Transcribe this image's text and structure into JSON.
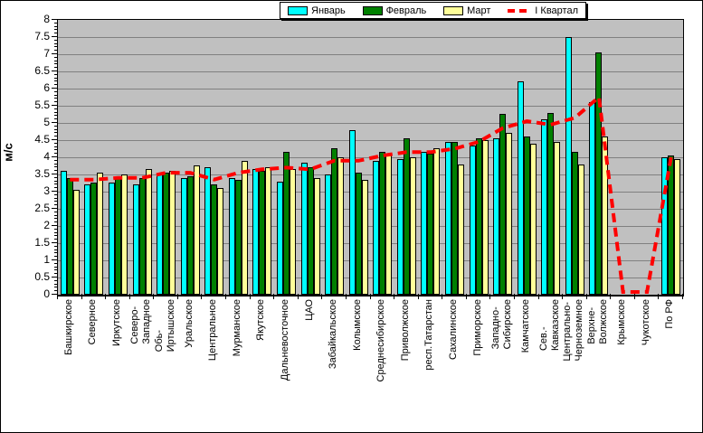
{
  "chart_data": {
    "type": "bar",
    "title": "",
    "xlabel": "",
    "ylabel": "м/с",
    "ylim": [
      0,
      8
    ],
    "ytick_step": 0.5,
    "grid": true,
    "legend_position": "top-center",
    "plot_bg_color": "#C0C0C0",
    "grid_color": "#808080",
    "axis_color": "#000000",
    "ytick_labels": [
      "0",
      "0.5",
      "1",
      "1.5",
      "2",
      "2.5",
      "3",
      "3.5",
      "4",
      "4.5",
      "5",
      "5.5",
      "6",
      "6.5",
      "7",
      "7.5",
      "8"
    ],
    "categories": [
      "Башкирское",
      "Северное",
      "Иркутское",
      "Северо-\nЗападное",
      "Обь-\nИртышское",
      "Уральское",
      "Центральное",
      "Мурманское",
      "Якутское",
      "Дальневосточное",
      "ЦАО",
      "Забайкальское",
      "Колымское",
      "Среднесибирское",
      "Приволжское",
      "респ.Татарстан",
      "Сахалинское",
      "Приморское",
      "Западно-\nСибирское",
      "Камчатское",
      "Сев.-\nКавказское",
      "Центрально-\nЧерноземное",
      "Верхне-\nВолжское",
      "Крымское",
      "Чукотское",
      "По РФ"
    ],
    "series": [
      {
        "name": "Январь",
        "type": "bar",
        "color": "#00FFFF",
        "values": [
          3.6,
          3.2,
          3.25,
          3.2,
          3.5,
          3.4,
          3.7,
          3.4,
          3.65,
          3.3,
          3.85,
          3.5,
          4.8,
          3.9,
          3.95,
          4.15,
          4.45,
          4.35,
          4.55,
          6.2,
          5.1,
          7.5,
          5.6,
          0,
          0,
          4.0
        ]
      },
      {
        "name": "Февраль",
        "type": "bar",
        "color": "#008000",
        "values": [
          3.4,
          3.25,
          3.4,
          3.4,
          3.55,
          3.45,
          3.2,
          3.35,
          3.6,
          4.15,
          3.7,
          4.25,
          3.55,
          4.15,
          4.55,
          4.1,
          4.45,
          4.55,
          5.25,
          4.6,
          5.3,
          4.15,
          7.05,
          0,
          0,
          4.05
        ]
      },
      {
        "name": "Март",
        "type": "bar",
        "color": "#FFFF99",
        "values": [
          3.05,
          3.55,
          3.5,
          3.65,
          3.6,
          3.75,
          3.1,
          3.9,
          3.7,
          3.65,
          3.4,
          4.0,
          3.35,
          4.1,
          4.0,
          4.25,
          3.8,
          4.5,
          4.7,
          4.4,
          4.45,
          3.8,
          4.6,
          0,
          0,
          3.95
        ]
      },
      {
        "name": "I Квартал",
        "type": "line",
        "color": "#FF0000",
        "style": "dashed",
        "values": [
          3.35,
          3.35,
          3.4,
          3.4,
          3.55,
          3.55,
          3.35,
          3.55,
          3.65,
          3.7,
          3.65,
          3.9,
          3.9,
          4.05,
          4.15,
          4.15,
          4.25,
          4.45,
          4.85,
          5.05,
          4.95,
          5.15,
          5.75,
          0,
          0,
          4.0
        ]
      }
    ]
  }
}
